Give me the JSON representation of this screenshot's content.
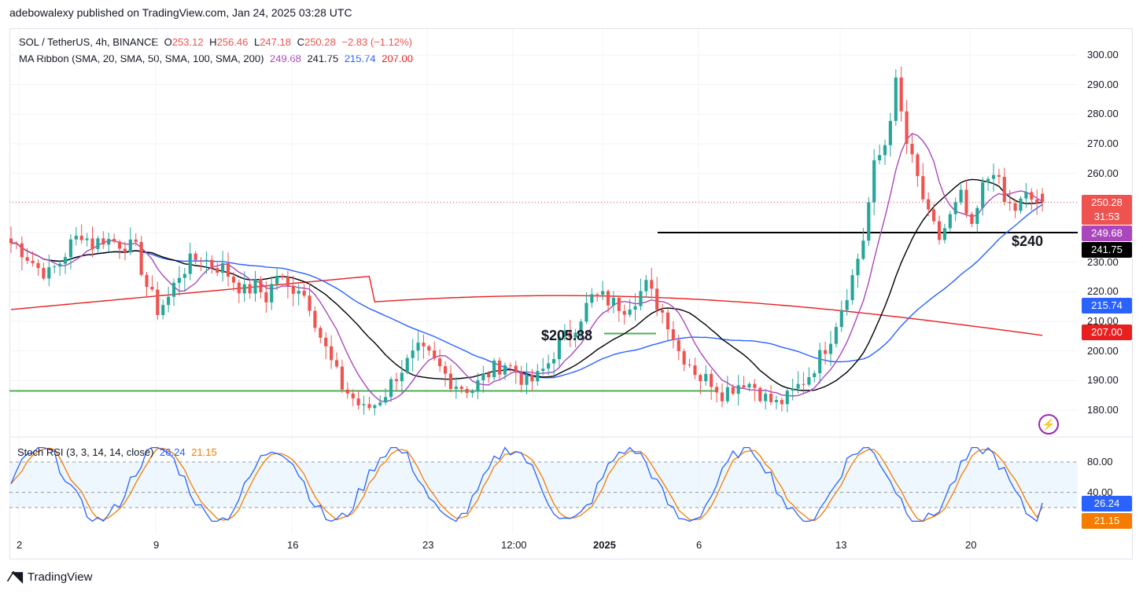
{
  "publisher_line": "adebowalexy published on TradingView.com, Jan 24, 2025 03:28 UTC",
  "legend": {
    "symbol": "SOL / TetherUS, 4h, BINANCE",
    "o_label": "O",
    "o_value": "253.12",
    "h_label": "H",
    "h_value": "256.46",
    "l_label": "L",
    "l_value": "247.18",
    "c_label": "C",
    "c_value": "250.28",
    "change": "−2.83 (−1.12%)",
    "ma_label": "MA Ribbon (SMA, 20, SMA, 50, SMA, 100, SMA, 200)",
    "ma20": "249.68",
    "ma50": "241.75",
    "ma100": "215.74",
    "ma200": "207.00"
  },
  "stoch": {
    "label": "Stoch RSI (3, 3, 14, 14, close)",
    "k": "26.24",
    "d": "21.15",
    "y_ticks": [
      "80.00",
      "40.00"
    ]
  },
  "price_axis": [
    "300.00",
    "290.00",
    "280.00",
    "270.00",
    "260.00",
    "250.00",
    "240.00",
    "230.00",
    "220.00",
    "210.00",
    "200.00",
    "190.00",
    "180.00"
  ],
  "badges": {
    "last_price": "250.28",
    "countdown": "31:53",
    "ma20": "249.68",
    "ma50": "241.75",
    "ma100": "215.74",
    "ma200": "207.00",
    "k": "26.24",
    "d": "21.15"
  },
  "x_axis": [
    "2",
    "9",
    "16",
    "23",
    "12:00",
    "2025",
    "6",
    "13",
    "20"
  ],
  "annotations": {
    "level_205": "$205.88",
    "level_240": "$240"
  },
  "footer": "TradingView",
  "colors": {
    "up": "#26a69a",
    "down": "#ef5350",
    "ma20": "#ab47bc",
    "ma50": "#000000",
    "ma100": "#2962ff",
    "ma200": "#e91e1e",
    "k": "#2962ff",
    "d": "#f57c00",
    "support": "#4caf50"
  },
  "chart_data": {
    "type": "candlestick",
    "title": "SOL / TetherUS, 4h, BINANCE",
    "ylim": [
      172,
      305
    ],
    "x_ticks": [
      "2",
      "9",
      "16",
      "23",
      "12:00",
      "2025",
      "6",
      "13",
      "20"
    ],
    "close_path_approx": [
      237,
      236,
      232,
      228,
      226,
      230,
      236,
      240,
      236,
      238,
      237,
      236,
      234,
      222,
      214,
      218,
      226,
      230,
      232,
      229,
      228,
      224,
      220,
      222,
      218,
      226,
      221,
      222,
      216,
      205,
      196,
      188,
      184,
      180,
      182,
      186,
      192,
      196,
      200,
      198,
      194,
      190,
      188,
      187,
      191,
      194,
      196,
      193,
      189,
      191,
      196,
      203,
      206,
      212,
      218,
      218,
      216,
      215,
      218,
      222,
      216,
      210,
      200,
      196,
      191,
      190,
      186,
      188,
      190,
      188,
      184,
      182,
      184,
      188,
      192,
      198,
      205,
      215,
      225,
      238,
      262,
      270,
      290,
      270,
      258,
      245,
      238,
      245,
      252,
      240,
      255,
      262,
      250,
      248,
      252,
      250.28
    ],
    "levels": [
      {
        "label": "$205.88",
        "value": 205.88
      },
      {
        "label": "$240",
        "value": 240
      }
    ],
    "support_line": 186.5,
    "ma_ribbon": {
      "sma20": 249.68,
      "sma50": 241.75,
      "sma100": 215.74,
      "sma200": 207.0
    },
    "stoch_rsi": {
      "k": 26.24,
      "d": 21.15,
      "bands": [
        80,
        40,
        20
      ]
    }
  }
}
